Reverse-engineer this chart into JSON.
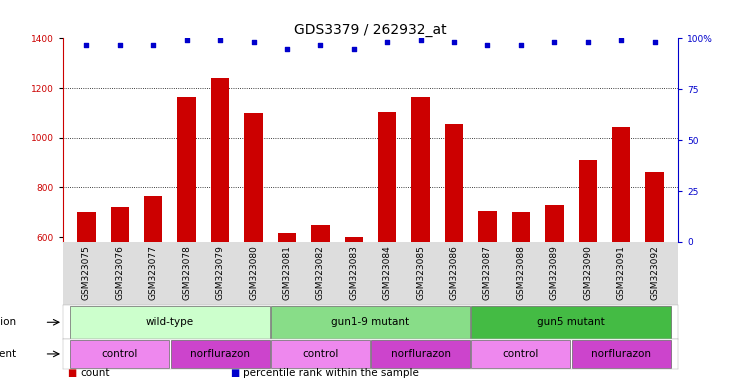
{
  "title": "GDS3379 / 262932_at",
  "samples": [
    "GSM323075",
    "GSM323076",
    "GSM323077",
    "GSM323078",
    "GSM323079",
    "GSM323080",
    "GSM323081",
    "GSM323082",
    "GSM323083",
    "GSM323084",
    "GSM323085",
    "GSM323086",
    "GSM323087",
    "GSM323088",
    "GSM323089",
    "GSM323090",
    "GSM323091",
    "GSM323092"
  ],
  "counts": [
    700,
    720,
    765,
    1165,
    1240,
    1100,
    615,
    650,
    600,
    1105,
    1165,
    1055,
    705,
    700,
    730,
    910,
    1045,
    860
  ],
  "percentile_ranks": [
    97,
    97,
    97,
    99,
    99,
    98,
    95,
    97,
    95,
    98,
    99,
    98,
    97,
    97,
    98,
    98,
    99,
    98
  ],
  "ylim_left": [
    580,
    1400
  ],
  "ylim_right": [
    0,
    100
  ],
  "yticks_left": [
    600,
    800,
    1000,
    1200,
    1400
  ],
  "yticks_right": [
    0,
    25,
    50,
    75,
    100
  ],
  "ytick_right_labels": [
    "0",
    "25",
    "50",
    "75",
    "100%"
  ],
  "bar_color": "#cc0000",
  "dot_color": "#0000cc",
  "background_color": "#ffffff",
  "genotype_groups": [
    {
      "label": "wild-type",
      "start": 0,
      "end": 5,
      "color": "#ccffcc"
    },
    {
      "label": "gun1-9 mutant",
      "start": 6,
      "end": 11,
      "color": "#88dd88"
    },
    {
      "label": "gun5 mutant",
      "start": 12,
      "end": 17,
      "color": "#44bb44"
    }
  ],
  "agent_groups": [
    {
      "label": "control",
      "start": 0,
      "end": 2,
      "color": "#ee88ee"
    },
    {
      "label": "norflurazon",
      "start": 3,
      "end": 5,
      "color": "#cc44cc"
    },
    {
      "label": "control",
      "start": 6,
      "end": 8,
      "color": "#ee88ee"
    },
    {
      "label": "norflurazon",
      "start": 9,
      "end": 11,
      "color": "#cc44cc"
    },
    {
      "label": "control",
      "start": 12,
      "end": 14,
      "color": "#ee88ee"
    },
    {
      "label": "norflurazon",
      "start": 15,
      "end": 17,
      "color": "#cc44cc"
    }
  ],
  "legend_items": [
    {
      "label": "count",
      "color": "#cc0000",
      "marker": "s"
    },
    {
      "label": "percentile rank within the sample",
      "color": "#0000cc",
      "marker": "s"
    }
  ],
  "title_fontsize": 10,
  "tick_fontsize": 6.5,
  "annot_fontsize": 7.5,
  "legend_fontsize": 7.5
}
